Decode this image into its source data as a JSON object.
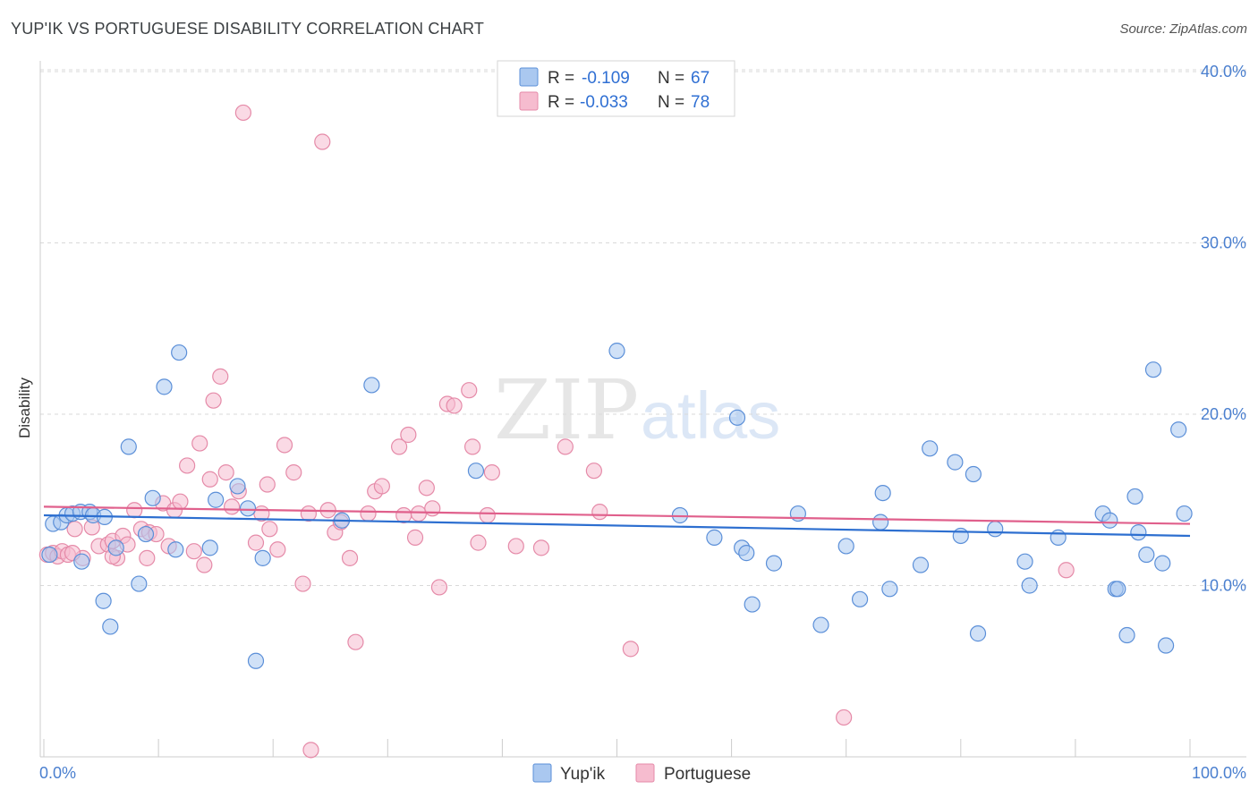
{
  "title": "YUP'IK VS PORTUGUESE DISABILITY CORRELATION CHART",
  "source": "Source: ZipAtlas.com",
  "watermark": {
    "zip": "ZIP",
    "atlas": "atlas"
  },
  "colors": {
    "blue_fill": "#aac8f0",
    "blue_stroke": "#5b8fd8",
    "blue_line": "#2d6fd0",
    "pink_fill": "#f6bccf",
    "pink_stroke": "#e58aa8",
    "pink_line": "#e0608c",
    "grid": "#d9d9d9",
    "tick_text": "#4a7fcf"
  },
  "legend": {
    "rows": [
      {
        "r_label": "R =",
        "r_value": "-0.109",
        "n_label": "N =",
        "n_value": "67"
      },
      {
        "r_label": "R =",
        "r_value": "-0.033",
        "n_label": "N =",
        "n_value": "78"
      }
    ]
  },
  "chart_data": {
    "type": "scatter",
    "xlabel": "",
    "ylabel": "Disability",
    "xlim": [
      0,
      100
    ],
    "ylim": [
      0,
      40.5
    ],
    "x_tick_labels": [
      "0.0%",
      "100.0%"
    ],
    "y_ticks": [
      10,
      20,
      30,
      40
    ],
    "y_tick_labels": [
      "10.0%",
      "20.0%",
      "30.0%",
      "40.0%"
    ],
    "grid": true,
    "legend_position": "bottom-center",
    "series": [
      {
        "name": "Yup'ik",
        "trend": [
          [
            0,
            14.1
          ],
          [
            100,
            12.9
          ]
        ],
        "points": [
          [
            0.5,
            11.8
          ],
          [
            0.8,
            13.6
          ],
          [
            1.5,
            13.7
          ],
          [
            2.0,
            14.1
          ],
          [
            2.5,
            14.2
          ],
          [
            3.2,
            14.3
          ],
          [
            3.3,
            11.4
          ],
          [
            4.0,
            14.3
          ],
          [
            4.3,
            14.1
          ],
          [
            5.2,
            9.1
          ],
          [
            5.3,
            14.0
          ],
          [
            5.8,
            7.6
          ],
          [
            6.3,
            12.2
          ],
          [
            7.4,
            18.1
          ],
          [
            8.3,
            10.1
          ],
          [
            8.9,
            13.0
          ],
          [
            9.5,
            15.1
          ],
          [
            10.5,
            21.6
          ],
          [
            11.5,
            12.1
          ],
          [
            11.8,
            23.6
          ],
          [
            14.5,
            12.2
          ],
          [
            15.0,
            15.0
          ],
          [
            16.9,
            15.8
          ],
          [
            17.8,
            14.5
          ],
          [
            18.5,
            5.6
          ],
          [
            19.1,
            11.6
          ],
          [
            26.0,
            13.8
          ],
          [
            28.6,
            21.7
          ],
          [
            37.7,
            16.7
          ],
          [
            50.0,
            23.7
          ],
          [
            55.5,
            14.1
          ],
          [
            58.5,
            12.8
          ],
          [
            60.5,
            19.8
          ],
          [
            60.9,
            12.2
          ],
          [
            61.3,
            11.9
          ],
          [
            61.8,
            8.9
          ],
          [
            63.7,
            11.3
          ],
          [
            65.8,
            14.2
          ],
          [
            67.8,
            7.7
          ],
          [
            70.0,
            12.3
          ],
          [
            71.2,
            9.2
          ],
          [
            73.0,
            13.7
          ],
          [
            73.2,
            15.4
          ],
          [
            73.8,
            9.8
          ],
          [
            76.5,
            11.2
          ],
          [
            77.3,
            18.0
          ],
          [
            79.5,
            17.2
          ],
          [
            80.0,
            12.9
          ],
          [
            81.1,
            16.5
          ],
          [
            81.5,
            7.2
          ],
          [
            83.0,
            13.3
          ],
          [
            85.6,
            11.4
          ],
          [
            86.0,
            10.0
          ],
          [
            88.5,
            12.8
          ],
          [
            92.4,
            14.2
          ],
          [
            93.0,
            13.8
          ],
          [
            93.5,
            9.8
          ],
          [
            93.7,
            9.8
          ],
          [
            94.5,
            7.1
          ],
          [
            95.2,
            15.2
          ],
          [
            95.5,
            13.1
          ],
          [
            96.2,
            11.8
          ],
          [
            96.8,
            22.6
          ],
          [
            97.6,
            11.3
          ],
          [
            97.9,
            6.5
          ],
          [
            99.0,
            19.1
          ],
          [
            99.5,
            14.2
          ]
        ]
      },
      {
        "name": "Portuguese",
        "trend": [
          [
            0,
            14.6
          ],
          [
            100,
            13.6
          ]
        ],
        "points": [
          [
            0.3,
            11.8
          ],
          [
            0.8,
            11.9
          ],
          [
            1.2,
            11.7
          ],
          [
            1.6,
            12.0
          ],
          [
            2.1,
            11.8
          ],
          [
            2.7,
            13.3
          ],
          [
            3.4,
            11.6
          ],
          [
            4.2,
            13.4
          ],
          [
            4.8,
            12.3
          ],
          [
            5.6,
            12.4
          ],
          [
            6.0,
            12.6
          ],
          [
            6.4,
            11.6
          ],
          [
            6.9,
            12.9
          ],
          [
            7.3,
            12.4
          ],
          [
            7.9,
            14.4
          ],
          [
            8.5,
            13.3
          ],
          [
            9.0,
            11.6
          ],
          [
            9.2,
            13.1
          ],
          [
            9.8,
            13.0
          ],
          [
            10.4,
            14.8
          ],
          [
            10.9,
            12.3
          ],
          [
            11.4,
            14.4
          ],
          [
            11.9,
            14.9
          ],
          [
            12.5,
            17.0
          ],
          [
            13.1,
            12.0
          ],
          [
            13.6,
            18.3
          ],
          [
            14.0,
            11.2
          ],
          [
            14.5,
            16.2
          ],
          [
            14.8,
            20.8
          ],
          [
            15.4,
            22.2
          ],
          [
            15.9,
            16.6
          ],
          [
            16.4,
            14.6
          ],
          [
            17.0,
            15.5
          ],
          [
            17.4,
            37.6
          ],
          [
            18.5,
            12.5
          ],
          [
            19.0,
            14.2
          ],
          [
            19.5,
            15.9
          ],
          [
            19.7,
            13.3
          ],
          [
            20.4,
            12.1
          ],
          [
            21.0,
            18.2
          ],
          [
            21.8,
            16.6
          ],
          [
            22.6,
            10.1
          ],
          [
            23.1,
            14.2
          ],
          [
            23.3,
            0.4
          ],
          [
            24.3,
            35.9
          ],
          [
            24.8,
            14.4
          ],
          [
            25.4,
            13.1
          ],
          [
            25.9,
            13.7
          ],
          [
            26.7,
            11.6
          ],
          [
            27.2,
            6.7
          ],
          [
            28.3,
            14.2
          ],
          [
            28.9,
            15.5
          ],
          [
            29.5,
            15.8
          ],
          [
            31.0,
            18.1
          ],
          [
            31.4,
            14.1
          ],
          [
            31.8,
            18.8
          ],
          [
            32.4,
            12.8
          ],
          [
            32.7,
            14.2
          ],
          [
            33.4,
            15.7
          ],
          [
            33.9,
            14.5
          ],
          [
            34.5,
            9.9
          ],
          [
            35.2,
            20.6
          ],
          [
            35.8,
            20.5
          ],
          [
            37.1,
            21.4
          ],
          [
            37.4,
            18.1
          ],
          [
            37.9,
            12.5
          ],
          [
            38.7,
            14.1
          ],
          [
            39.1,
            16.6
          ],
          [
            41.2,
            12.3
          ],
          [
            43.4,
            12.2
          ],
          [
            45.5,
            18.1
          ],
          [
            48.0,
            16.7
          ],
          [
            48.5,
            14.3
          ],
          [
            51.2,
            6.3
          ],
          [
            69.8,
            2.3
          ],
          [
            89.2,
            10.9
          ],
          [
            2.5,
            11.9
          ],
          [
            6.0,
            11.7
          ]
        ]
      }
    ]
  }
}
